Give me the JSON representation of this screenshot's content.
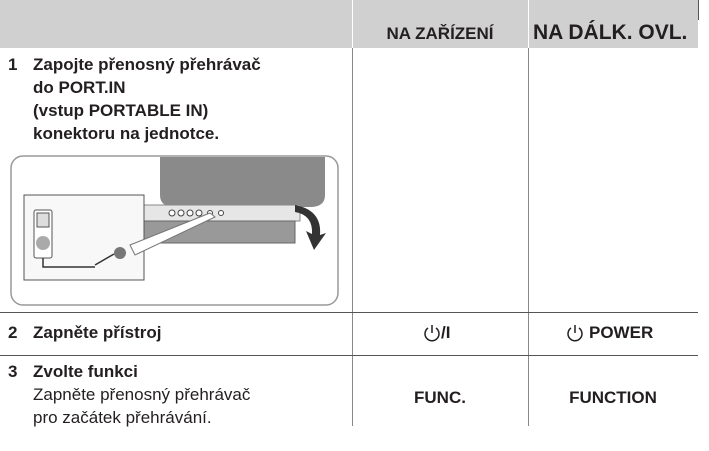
{
  "header": {
    "device_column": "NA ZAŘÍZENÍ",
    "remote_column": "NA DÁLK. OVL."
  },
  "steps": [
    {
      "number": "1",
      "lines": [
        "Zapojte přenosný přehrávač",
        "do PORT.IN",
        "(vstup PORTABLE IN)",
        "konektoru na jednotce."
      ]
    },
    {
      "number": "2",
      "title": "Zapněte přístroj",
      "device": "/I",
      "remote": "POWER"
    },
    {
      "number": "3",
      "title": "Zvolte funkci",
      "lines": [
        "Zapněte přenosný přehrávač",
        "pro začátek přehrávání."
      ],
      "device": "FUNC.",
      "remote": "FUNCTION"
    }
  ]
}
